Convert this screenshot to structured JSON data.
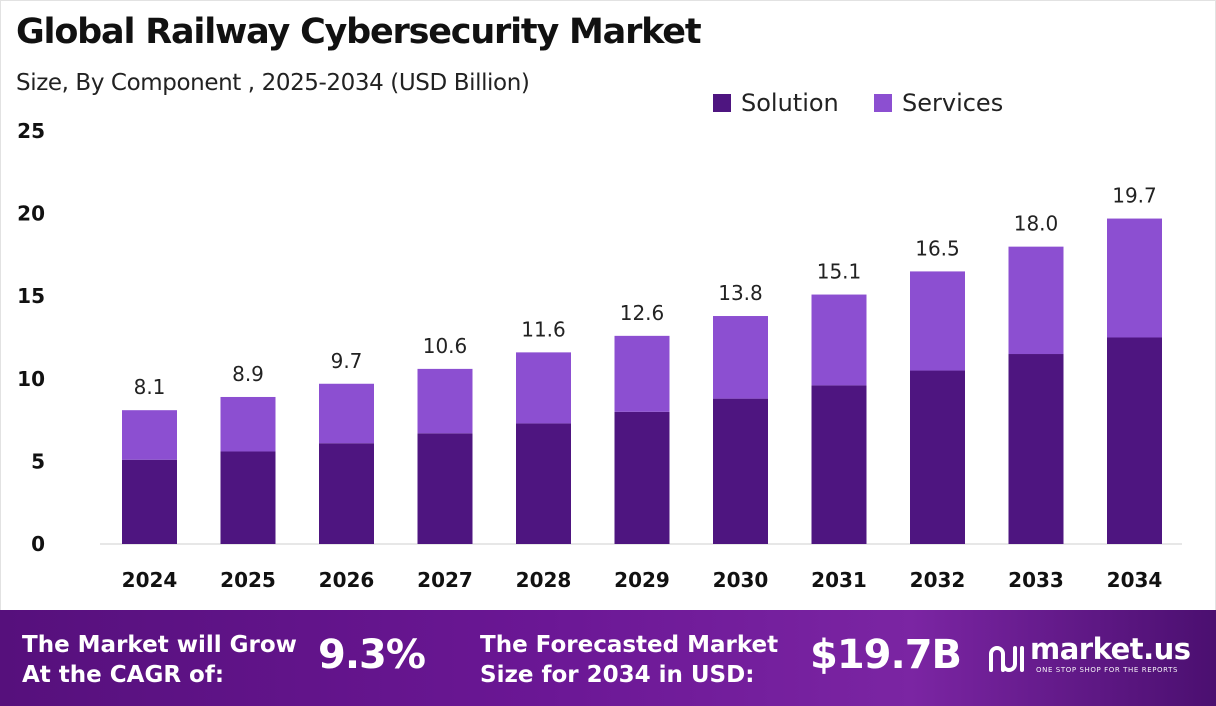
{
  "title": "Global Railway Cybersecurity Market",
  "subtitle": "Size, By Component , 2025-2034 (USD Billion)",
  "legend": [
    {
      "label": "Solution",
      "color": "#4e1580"
    },
    {
      "label": "Services",
      "color": "#8c4fd1"
    }
  ],
  "chart_data": {
    "type": "bar",
    "stacked": true,
    "categories": [
      "2024",
      "2025",
      "2026",
      "2027",
      "2028",
      "2029",
      "2030",
      "2031",
      "2032",
      "2033",
      "2034"
    ],
    "series": [
      {
        "name": "Solution",
        "color": "#4e1580",
        "values": [
          5.1,
          5.6,
          6.1,
          6.7,
          7.3,
          8.0,
          8.8,
          9.6,
          10.5,
          11.5,
          12.5
        ]
      },
      {
        "name": "Services",
        "color": "#8c4fd1",
        "values": [
          3.0,
          3.3,
          3.6,
          3.9,
          4.3,
          4.6,
          5.0,
          5.5,
          6.0,
          6.5,
          7.2
        ]
      }
    ],
    "totals": [
      "8.1",
      "8.9",
      "9.7",
      "10.6",
      "11.6",
      "12.6",
      "13.8",
      "15.1",
      "16.5",
      "18.0",
      "19.7"
    ],
    "yticks": [
      0,
      5,
      10,
      15,
      20,
      25
    ],
    "ylim": [
      0,
      25
    ],
    "grid": false,
    "legend_position": "top-right"
  },
  "footer": {
    "cagr_label_line1": "The Market will Grow",
    "cagr_label_line2": "At the CAGR of:",
    "cagr_value": "9.3%",
    "forecast_label_line1": "The Forecasted Market",
    "forecast_label_line2": "Size for 2034 in USD:",
    "forecast_value": "$19.7B",
    "logo_text": "market.us",
    "logo_tagline": "ONE STOP SHOP FOR THE REPORTS"
  }
}
